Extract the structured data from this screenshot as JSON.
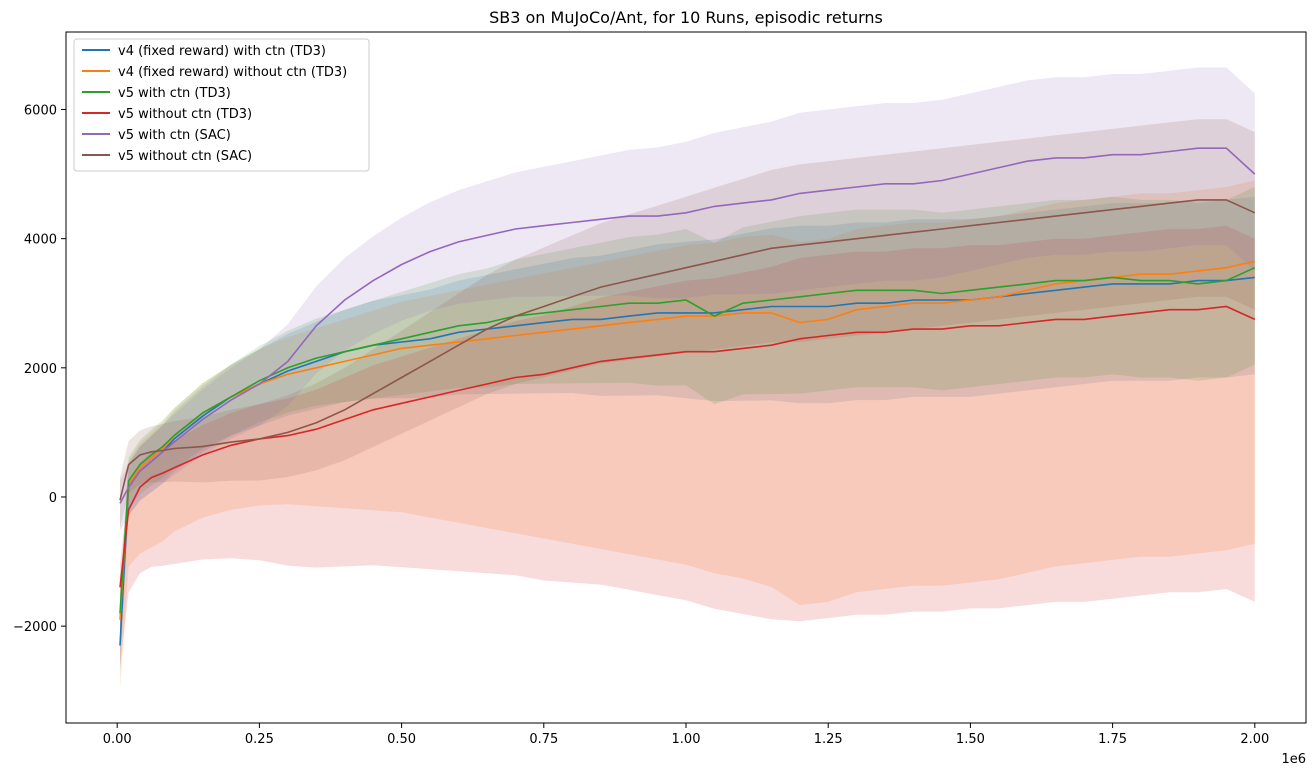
{
  "chart_data": {
    "type": "line",
    "title": "SB3 on MuJoCo/Ant, for 10 Runs, episodic returns",
    "xlabel": "",
    "ylabel": "",
    "x_multiplier_label": "1e6",
    "xlim": [
      -0.09,
      2.09
    ],
    "ylim": [
      -3500,
      7200
    ],
    "x_ticks": [
      0.0,
      0.25,
      0.5,
      0.75,
      1.0,
      1.25,
      1.5,
      1.75,
      2.0
    ],
    "x_tick_labels": [
      "0.00",
      "0.25",
      "0.50",
      "0.75",
      "1.00",
      "1.25",
      "1.50",
      "1.75",
      "2.00"
    ],
    "y_ticks": [
      -2000,
      0,
      2000,
      4000,
      6000
    ],
    "y_tick_labels": [
      "−2000",
      "0",
      "2000",
      "4000",
      "6000"
    ],
    "grid": false,
    "legend_position": "top-left",
    "band_floor": -3000,
    "x": [
      0.005,
      0.02,
      0.04,
      0.06,
      0.08,
      0.1,
      0.15,
      0.2,
      0.25,
      0.3,
      0.35,
      0.4,
      0.45,
      0.5,
      0.55,
      0.6,
      0.65,
      0.7,
      0.75,
      0.8,
      0.85,
      0.9,
      0.95,
      1.0,
      1.05,
      1.1,
      1.15,
      1.2,
      1.25,
      1.3,
      1.35,
      1.4,
      1.45,
      1.5,
      1.55,
      1.6,
      1.65,
      1.7,
      1.75,
      1.8,
      1.85,
      1.9,
      1.95,
      2.0
    ],
    "series": [
      {
        "name": "v4 (fixed reward) with ctn (TD3)",
        "color": "#1f77b4",
        "values": [
          -2300,
          150,
          400,
          550,
          700,
          900,
          1250,
          1550,
          1750,
          1950,
          2100,
          2250,
          2350,
          2400,
          2450,
          2550,
          2600,
          2650,
          2700,
          2750,
          2750,
          2800,
          2850,
          2850,
          2850,
          2900,
          2950,
          2950,
          2950,
          3000,
          3000,
          3050,
          3050,
          3050,
          3100,
          3150,
          3200,
          3250,
          3300,
          3300,
          3300,
          3350,
          3350,
          3400
        ]
      },
      {
        "name": "v4 (fixed reward) without ctn (TD3)",
        "color": "#ff7f0e",
        "values": [
          -1900,
          200,
          450,
          600,
          750,
          950,
          1300,
          1550,
          1750,
          1900,
          2000,
          2100,
          2200,
          2300,
          2350,
          2400,
          2450,
          2500,
          2550,
          2600,
          2650,
          2700,
          2750,
          2800,
          2800,
          2850,
          2850,
          2700,
          2750,
          2900,
          2950,
          3000,
          3000,
          3050,
          3100,
          3200,
          3300,
          3350,
          3400,
          3450,
          3450,
          3500,
          3550,
          3650
        ]
      },
      {
        "name": "v5 with ctn (TD3)",
        "color": "#2ca02c",
        "values": [
          -1800,
          250,
          500,
          650,
          780,
          950,
          1300,
          1550,
          1800,
          2000,
          2150,
          2250,
          2350,
          2450,
          2550,
          2650,
          2700,
          2800,
          2850,
          2900,
          2950,
          3000,
          3000,
          3050,
          2800,
          3000,
          3050,
          3100,
          3150,
          3200,
          3200,
          3200,
          3150,
          3200,
          3250,
          3300,
          3350,
          3350,
          3400,
          3350,
          3350,
          3300,
          3350,
          3550
        ]
      },
      {
        "name": "v5 without ctn (TD3)",
        "color": "#d62728",
        "values": [
          -1400,
          -200,
          150,
          300,
          370,
          450,
          650,
          800,
          900,
          950,
          1050,
          1200,
          1350,
          1450,
          1550,
          1650,
          1750,
          1850,
          1900,
          2000,
          2100,
          2150,
          2200,
          2250,
          2250,
          2300,
          2350,
          2450,
          2500,
          2550,
          2550,
          2600,
          2600,
          2650,
          2650,
          2700,
          2750,
          2750,
          2800,
          2850,
          2900,
          2900,
          2950,
          2750
        ]
      },
      {
        "name": "v5 with ctn (SAC)",
        "color": "#9467bd",
        "values": [
          -100,
          150,
          400,
          550,
          700,
          850,
          1200,
          1500,
          1750,
          2100,
          2650,
          3050,
          3350,
          3600,
          3800,
          3950,
          4050,
          4150,
          4200,
          4250,
          4300,
          4350,
          4350,
          4400,
          4500,
          4550,
          4600,
          4700,
          4750,
          4800,
          4850,
          4850,
          4900,
          5000,
          5100,
          5200,
          5250,
          5250,
          5300,
          5300,
          5350,
          5400,
          5400,
          5000
        ]
      },
      {
        "name": "v5 without ctn (SAC)",
        "color": "#8c564b",
        "values": [
          -50,
          500,
          650,
          700,
          720,
          750,
          780,
          850,
          900,
          1000,
          1150,
          1350,
          1600,
          1850,
          2100,
          2350,
          2600,
          2800,
          2950,
          3100,
          3250,
          3350,
          3450,
          3550,
          3650,
          3750,
          3850,
          3900,
          3950,
          4000,
          4050,
          4100,
          4150,
          4200,
          4250,
          4300,
          4350,
          4400,
          4450,
          4500,
          4550,
          4600,
          4600,
          4400
        ]
      }
    ]
  }
}
